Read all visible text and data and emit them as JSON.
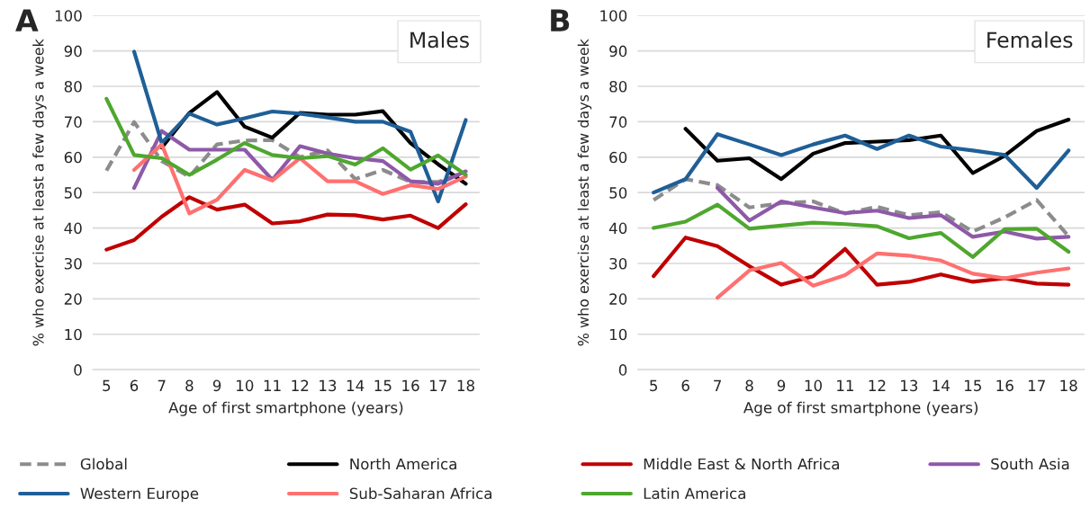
{
  "chart_data": [
    {
      "type": "line",
      "title": "Males",
      "annotations": [
        "A"
      ],
      "xlabel": "Age of first smartphone (years)",
      "ylabel": "% who exercise at least a few days a week",
      "categories": [
        "5",
        "6",
        "7",
        "8",
        "9",
        "10",
        "11",
        "12",
        "13",
        "14",
        "15",
        "16",
        "17",
        "18"
      ],
      "ylim": [
        0,
        100
      ],
      "yticks": [
        0,
        10,
        20,
        30,
        40,
        50,
        60,
        70,
        80,
        90,
        100
      ],
      "grid": "y",
      "legend": "bottom",
      "marker": "none",
      "series": [
        {
          "name": "Global",
          "color": "#8c8c8c",
          "line_style": "dashed",
          "values": [
            56.2,
            69.9,
            58.9,
            54.5,
            63.6,
            64.7,
            64.8,
            60,
            61.9,
            53.8,
            56.4,
            53,
            53,
            56
          ]
        },
        {
          "name": "North America",
          "color": "#000000",
          "values": [
            null,
            null,
            62.7,
            72.5,
            78.4,
            68.6,
            65.5,
            72.5,
            72,
            72,
            73,
            64,
            58,
            52.5
          ]
        },
        {
          "name": "Middle East & North Africa",
          "color": "#c00000",
          "values": [
            33.9,
            36.6,
            43.2,
            48.7,
            45.2,
            46.6,
            41.3,
            41.9,
            43.8,
            43.6,
            42.4,
            43.5,
            40,
            46.7
          ]
        },
        {
          "name": "South Asia",
          "color": "#8e59a8",
          "values": [
            null,
            51.3,
            67.4,
            62.1,
            62.1,
            62.1,
            53.6,
            63.1,
            61,
            59.7,
            58.9,
            53.2,
            52.5,
            56
          ]
        },
        {
          "name": "Western Europe",
          "color": "#1f5f97",
          "values": [
            null,
            89.8,
            64,
            72.3,
            69.2,
            71,
            72.9,
            72.3,
            71.2,
            70,
            70,
            67.2,
            47.5,
            70.5
          ]
        },
        {
          "name": "Sub-Saharan Africa",
          "color": "#ff7070",
          "values": [
            null,
            56.4,
            63.6,
            44.1,
            48,
            56.4,
            53.4,
            59.7,
            53.2,
            53.2,
            49.6,
            52.1,
            51,
            54.5
          ]
        },
        {
          "name": "Latin America",
          "color": "#4ea72e",
          "values": [
            76.5,
            60.6,
            59.7,
            55,
            59.3,
            64,
            60.6,
            59.7,
            60.3,
            57.9,
            62.5,
            56.5,
            60.5,
            55
          ]
        }
      ]
    },
    {
      "type": "line",
      "title": "Females",
      "annotations": [
        "B"
      ],
      "xlabel": "Age of first smartphone (years)",
      "ylabel": "% who exercise at least a few days a week",
      "categories": [
        "5",
        "6",
        "7",
        "8",
        "9",
        "10",
        "11",
        "12",
        "13",
        "14",
        "15",
        "16",
        "17",
        "18"
      ],
      "ylim": [
        0,
        100
      ],
      "yticks": [
        0,
        10,
        20,
        30,
        40,
        50,
        60,
        70,
        80,
        90,
        100
      ],
      "grid": "y",
      "marker": "none",
      "series": [
        {
          "color": "#8c8c8c",
          "line_style": "dashed",
          "values": [
            47.9,
            53.8,
            52.1,
            45.8,
            47,
            47.5,
            44.1,
            46,
            43.6,
            44.5,
            39,
            43,
            47.9,
            37.7
          ]
        },
        {
          "color": "#000000",
          "values": [
            null,
            68,
            59,
            59.7,
            53.8,
            61,
            64,
            64.4,
            64.8,
            66.1,
            55.5,
            60.4,
            67.4,
            70.6
          ]
        },
        {
          "color": "#c00000",
          "values": [
            26.4,
            37.3,
            34.9,
            29.2,
            24,
            26.4,
            34.1,
            24,
            24.8,
            26.9,
            24.8,
            25.8,
            24.3,
            24
          ]
        },
        {
          "color": "#8e59a8",
          "values": [
            null,
            null,
            51.3,
            42.1,
            47.5,
            45.8,
            44.2,
            44.9,
            42.8,
            43.6,
            37.5,
            39,
            37,
            37.5
          ]
        },
        {
          "color": "#1f5f97",
          "values": [
            50,
            53.8,
            66.5,
            63.6,
            60.6,
            63.6,
            66.1,
            62.3,
            66.1,
            63,
            61.9,
            60.6,
            51.3,
            61.9
          ]
        },
        {
          "color": "#ff7070",
          "values": [
            null,
            null,
            20.3,
            28,
            30.1,
            23.7,
            26.7,
            32.8,
            32.2,
            30.8,
            27.1,
            25.8,
            27.4,
            28.6
          ]
        },
        {
          "color": "#4ea72e",
          "values": [
            40,
            41.8,
            46.6,
            39.8,
            40.7,
            41.5,
            41.1,
            40.5,
            37.1,
            38.6,
            31.8,
            39.7,
            39.8,
            33.3
          ]
        }
      ]
    }
  ]
}
